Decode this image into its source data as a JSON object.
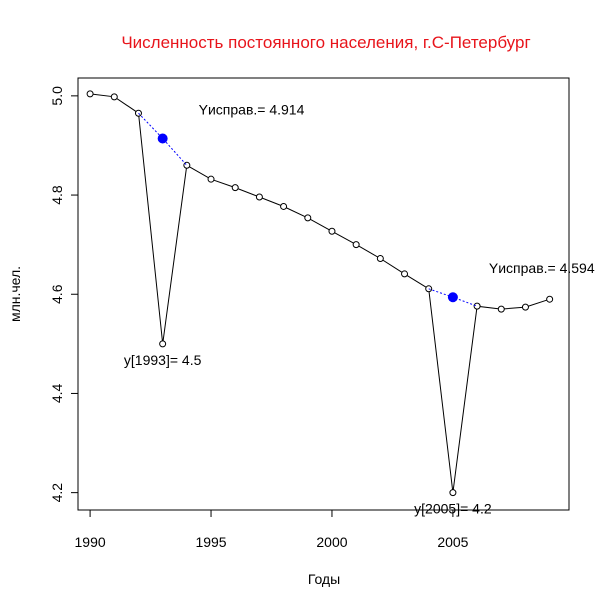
{
  "chart_data": {
    "type": "line",
    "title": "Численность постоянного населения, г.С-Петербург",
    "xlabel": "Годы",
    "ylabel": "млн.чел.",
    "xlim": [
      1989.5,
      2009.8
    ],
    "ylim": [
      4.165,
      5.036
    ],
    "x_ticks": [
      1990,
      1995,
      2000,
      2005
    ],
    "x_tick_labels": [
      "1990",
      "1995",
      "2000",
      "2005"
    ],
    "y_ticks": [
      4.2,
      4.4,
      4.6,
      4.8,
      5.0
    ],
    "y_tick_labels": [
      "4.2",
      "4.4",
      "4.6",
      "4.8",
      "5.0"
    ],
    "grid": false,
    "colors": {
      "title": "#e8141b",
      "corrected": "#0000ff",
      "line": "#000000"
    },
    "series": [
      {
        "x": [
          1990,
          1991,
          1992,
          1993,
          1994,
          1995,
          1996,
          1997,
          1998,
          1999,
          2000,
          2001,
          2002,
          2003,
          2004,
          2005,
          2006,
          2007,
          2008,
          2009
        ],
        "values": [
          5.004,
          4.998,
          4.965,
          4.5,
          4.86,
          4.832,
          4.815,
          4.796,
          4.777,
          4.754,
          4.727,
          4.7,
          4.672,
          4.641,
          4.611,
          4.2,
          4.576,
          4.57,
          4.574,
          4.59
        ]
      }
    ],
    "corrected_points": [
      {
        "x": 1993,
        "y": 4.914,
        "label": "Yисправ.= 4.914"
      },
      {
        "x": 2005,
        "y": 4.594,
        "label": "Yисправ.= 4.594"
      }
    ],
    "annotations": [
      {
        "x": 1993,
        "y": 4.5,
        "text": "y[1993]= 4.5"
      },
      {
        "x": 2005,
        "y": 4.2,
        "text": "y[2005]= 4.2"
      }
    ]
  }
}
